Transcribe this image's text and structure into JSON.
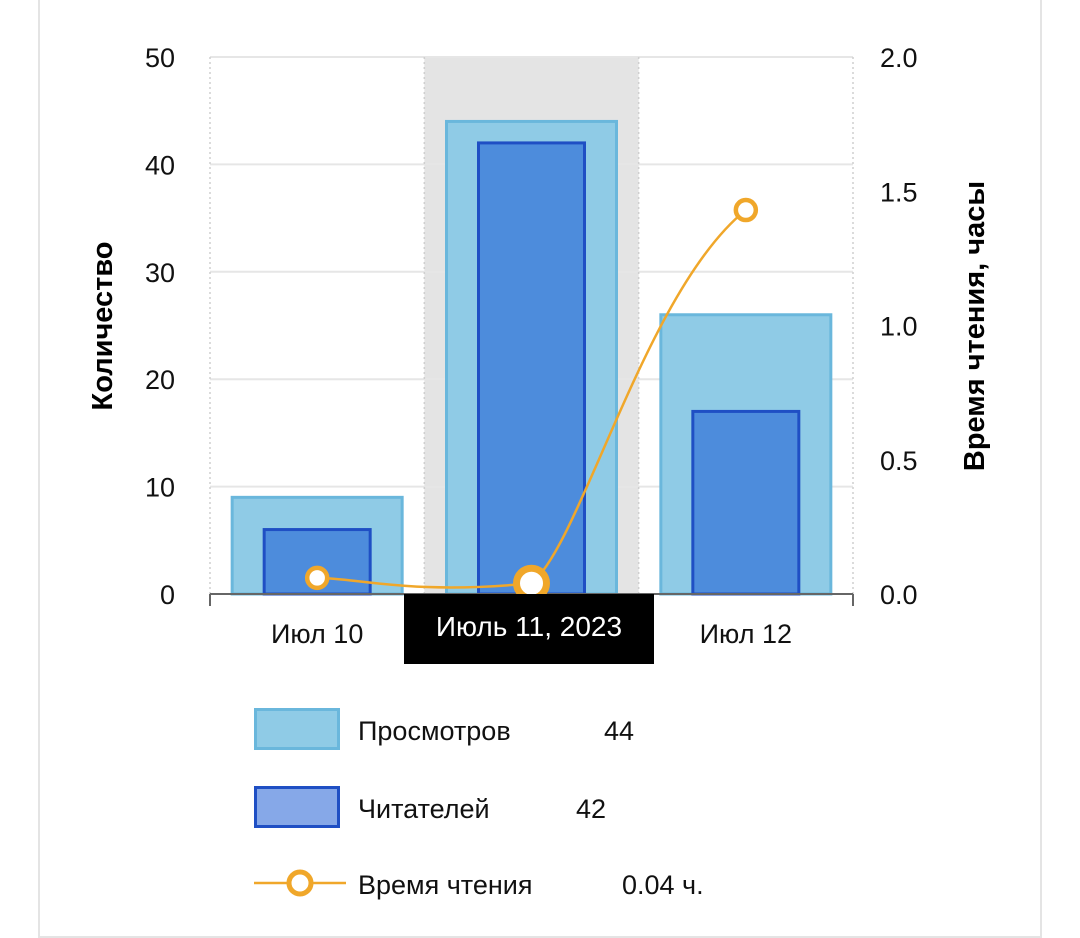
{
  "colors": {
    "views_fill": "#8fcbe6",
    "views_stroke": "#6ab7dc",
    "readers_fill": "#4d8cdc",
    "readers_stroke": "#1f4fc4",
    "readers_legend_fill": "#86a8e8",
    "reading_time": "#f0a72a",
    "highlight_band": "#e4e4e4",
    "grid": "#e6e6e6",
    "tooltip_bg": "#000000"
  },
  "chart_data": {
    "type": "bar",
    "categories": [
      "Июл 10",
      "Июль 11, 2023",
      "Июл 12"
    ],
    "x_tick_labels": [
      "Июл 10",
      "",
      "Июл 12"
    ],
    "highlighted_index": 1,
    "tooltip_label": "Июль 11, 2023",
    "ylabel": "Количество",
    "ylabel_right": "Время чтения, часы",
    "ylim": [
      0,
      50
    ],
    "ylim_right": [
      0,
      2.0
    ],
    "y_ticks": [
      "0",
      "10",
      "20",
      "30",
      "40",
      "50"
    ],
    "y_ticks_right": [
      "0.0",
      "0.5",
      "1.0",
      "1.5",
      "2.0"
    ],
    "grid": true,
    "series": [
      {
        "name": "Просмотров",
        "type": "bar",
        "axis": "left",
        "values": [
          9,
          44,
          26
        ]
      },
      {
        "name": "Читателей",
        "type": "bar",
        "axis": "left",
        "values": [
          6,
          42,
          17
        ]
      },
      {
        "name": "Время чтения",
        "type": "line",
        "axis": "right",
        "values": [
          0.06,
          0.04,
          1.43
        ]
      }
    ]
  },
  "legend": {
    "position": "bottom",
    "items": [
      {
        "label": "Просмотров",
        "value": "44"
      },
      {
        "label": "Читателей",
        "value": "42"
      },
      {
        "label": "Время чтения",
        "value": "0.04 ч."
      }
    ]
  }
}
